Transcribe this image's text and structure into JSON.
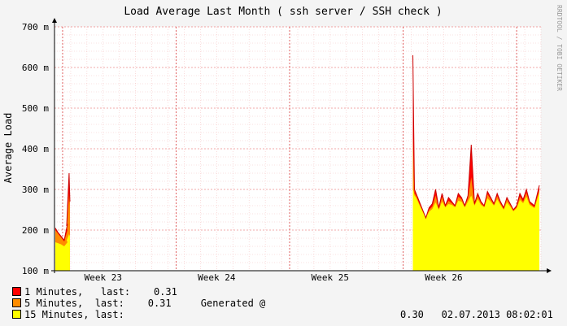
{
  "window": {
    "watermark": "RRDTOOL / TOBI OETIKER",
    "generated_label": "Generated @",
    "generated_time": "02.07.2013 08:02:01"
  },
  "colors": {
    "background": "#f4f4f4",
    "plot": "#ffffff",
    "grid": "#f0a0a0",
    "one_min": "#ff0000",
    "five_min": "#ff8c00",
    "fifteen_min": "#ffff00",
    "one_min_dark": "#cc0000"
  },
  "legend": [
    {
      "name": "1 Minutes,   last:",
      "last": "0.31",
      "color": "#ff0000"
    },
    {
      "name": "5 Minutes,  last:",
      "last": "0.31",
      "color": "#ff8c00"
    },
    {
      "name": "15 Minutes, last:",
      "last": "0.30",
      "color": "#ffff00"
    }
  ],
  "chart_data": {
    "type": "area",
    "title": "Load Average Last Month ( ssh server / SSH check )",
    "ylabel": "Average Load",
    "ylim": [
      100,
      700
    ],
    "yunit": "m",
    "yticks": [
      100,
      200,
      300,
      400,
      500,
      600,
      700
    ],
    "ytick_labels": [
      "100 m",
      "200 m",
      "300 m",
      "400 m",
      "500 m",
      "600 m",
      "700 m"
    ],
    "xlim_days": [
      0,
      30
    ],
    "xticks": [
      {
        "label": "Week 23",
        "day": 3
      },
      {
        "label": "Week 24",
        "day": 10
      },
      {
        "label": "Week 25",
        "day": 17
      },
      {
        "label": "Week 26",
        "day": 24
      }
    ],
    "grid": true,
    "x_day": [
      0.05,
      0.2,
      0.4,
      0.6,
      0.8,
      0.75,
      0.9,
      0.95,
      22.1,
      22.15,
      22.2,
      22.3,
      22.5,
      22.7,
      22.9,
      23.1,
      23.3,
      23.5,
      23.7,
      23.9,
      24.1,
      24.3,
      24.5,
      24.7,
      24.9,
      25.1,
      25.3,
      25.5,
      25.7,
      25.9,
      26.1,
      26.3,
      26.5,
      26.7,
      26.9,
      27.1,
      27.3,
      27.5,
      27.7,
      27.9,
      28.1,
      28.3,
      28.5,
      28.7,
      28.9,
      29.1,
      29.3,
      29.6,
      29.9
    ],
    "series": [
      {
        "name": "1 Minutes",
        "values": [
          205,
          195,
          185,
          175,
          215,
          210,
          340,
          270,
          630,
          460,
          300,
          290,
          270,
          250,
          230,
          255,
          265,
          300,
          255,
          290,
          260,
          280,
          270,
          260,
          290,
          280,
          260,
          285,
          410,
          265,
          290,
          270,
          260,
          295,
          280,
          265,
          290,
          270,
          255,
          280,
          265,
          250,
          260,
          290,
          275,
          300,
          270,
          260,
          310
        ]
      },
      {
        "name": "5 Minutes",
        "values": [
          200,
          192,
          182,
          172,
          200,
          205,
          290,
          260,
          430,
          340,
          290,
          285,
          265,
          248,
          230,
          250,
          258,
          285,
          252,
          282,
          258,
          272,
          266,
          258,
          282,
          276,
          258,
          278,
          330,
          262,
          284,
          266,
          258,
          288,
          276,
          262,
          284,
          266,
          252,
          276,
          262,
          248,
          256,
          282,
          270,
          292,
          266,
          256,
          300
        ]
      },
      {
        "name": "15 Minutes",
        "values": [
          170,
          168,
          165,
          160,
          170,
          175,
          190,
          185,
          300,
          295,
          285,
          280,
          262,
          245,
          230,
          245,
          252,
          268,
          250,
          270,
          256,
          264,
          262,
          256,
          272,
          270,
          256,
          270,
          285,
          260,
          276,
          262,
          256,
          278,
          270,
          260,
          276,
          262,
          250,
          268,
          258,
          246,
          254,
          274,
          266,
          282,
          262,
          254,
          292
        ]
      }
    ]
  }
}
